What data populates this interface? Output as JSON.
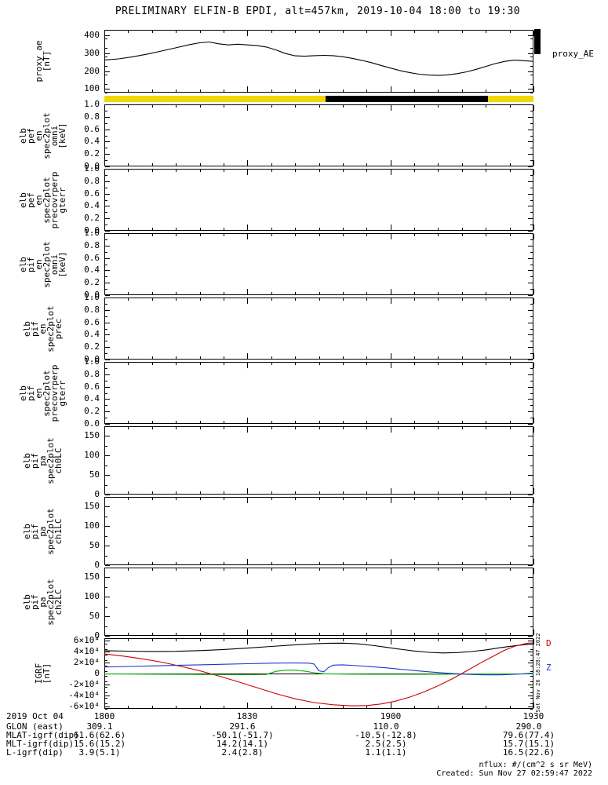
{
  "title": "PRELIMINARY ELFIN-B EPDI, alt=457km, 2019-10-04 18:00 to 19:30",
  "side_timestamp": "Sat Nov 26 18:28:47 2022",
  "xaxis": {
    "range_minutes": [
      0,
      90
    ],
    "major": [
      0,
      30,
      60,
      90
    ],
    "minor_step": 5,
    "tick_labels": [
      "1800",
      "1830",
      "1900",
      "1930"
    ]
  },
  "status_bar": {
    "track_color": "#f0d800",
    "segment_color": "#000000",
    "segment_from": 0.516,
    "segment_to": 0.894
  },
  "chart_data": [
    {
      "type": "line",
      "id": "proxy-ae",
      "ylabel": "proxy_ae\n[nT]",
      "right_label": "proxy_AE",
      "ylim": [
        80,
        430
      ],
      "yminor": 50,
      "yticks": [
        {
          "v": 400,
          "l": "400"
        },
        {
          "v": 300,
          "l": "300"
        },
        {
          "v": 200,
          "l": "200"
        },
        {
          "v": 100,
          "l": "100"
        }
      ],
      "series": [
        {
          "name": "proxy_AE",
          "color": "#000000",
          "points": [
            [
              0,
              262
            ],
            [
              3,
              268
            ],
            [
              6,
              280
            ],
            [
              9,
              295
            ],
            [
              12,
              312
            ],
            [
              15,
              330
            ],
            [
              18,
              348
            ],
            [
              20,
              358
            ],
            [
              22,
              362
            ],
            [
              24,
              352
            ],
            [
              26,
              346
            ],
            [
              28,
              350
            ],
            [
              30,
              346
            ],
            [
              32,
              342
            ],
            [
              34,
              334
            ],
            [
              36,
              318
            ],
            [
              38,
              298
            ],
            [
              40,
              285
            ],
            [
              42,
              283
            ],
            [
              44,
              286
            ],
            [
              46,
              288
            ],
            [
              48,
              286
            ],
            [
              50,
              280
            ],
            [
              52,
              271
            ],
            [
              54,
              260
            ],
            [
              56,
              247
            ],
            [
              58,
              232
            ],
            [
              60,
              217
            ],
            [
              62,
              203
            ],
            [
              64,
              192
            ],
            [
              66,
              183
            ],
            [
              68,
              178
            ],
            [
              70,
              176
            ],
            [
              72,
              179
            ],
            [
              74,
              186
            ],
            [
              76,
              196
            ],
            [
              78,
              210
            ],
            [
              80,
              226
            ],
            [
              82,
              242
            ],
            [
              84,
              254
            ],
            [
              86,
              261
            ],
            [
              88,
              258
            ],
            [
              90,
              254
            ]
          ]
        }
      ]
    },
    {
      "type": "spectrogram",
      "empty": true,
      "id": "elb-pef-en-spec2plot-omni",
      "ylabel": "elb\npef\nen\nspec2plot\nomni\n[keV]",
      "ylim": [
        0,
        1
      ],
      "yminor": 0.1,
      "yticks": [
        {
          "v": 1.0,
          "l": "1.0"
        },
        {
          "v": 0.8,
          "l": "0.8"
        },
        {
          "v": 0.6,
          "l": "0.6"
        },
        {
          "v": 0.4,
          "l": "0.4"
        },
        {
          "v": 0.2,
          "l": "0.2"
        },
        {
          "v": 0.0,
          "l": "0.0"
        }
      ]
    },
    {
      "type": "spectrogram",
      "empty": true,
      "id": "elb-pef-en-spec2plot-precovrperp-gterr",
      "ylabel": "elb\npef\nen\nspec2plot\nprecovrperp\ngterr",
      "ylim": [
        0,
        1
      ],
      "yminor": 0.1,
      "yticks": [
        {
          "v": 1.0,
          "l": "1.0"
        },
        {
          "v": 0.8,
          "l": "0.8"
        },
        {
          "v": 0.6,
          "l": "0.6"
        },
        {
          "v": 0.4,
          "l": "0.4"
        },
        {
          "v": 0.2,
          "l": "0.2"
        },
        {
          "v": 0.0,
          "l": "0.0"
        }
      ]
    },
    {
      "type": "spectrogram",
      "empty": true,
      "id": "elb-pif-en-spec2plot-omni",
      "ylabel": "elb\npif\nen\nspec2plot\nomni\n[keV]",
      "ylim": [
        0,
        1
      ],
      "yminor": 0.1,
      "yticks": [
        {
          "v": 1.0,
          "l": "1.0"
        },
        {
          "v": 0.8,
          "l": "0.8"
        },
        {
          "v": 0.6,
          "l": "0.6"
        },
        {
          "v": 0.4,
          "l": "0.4"
        },
        {
          "v": 0.2,
          "l": "0.2"
        },
        {
          "v": 0.0,
          "l": "0.0"
        }
      ]
    },
    {
      "type": "spectrogram",
      "empty": true,
      "id": "elb-pif-en-spec2plot-prec",
      "ylabel": "elb\npif\nen\nspec2plot\nprec",
      "ylim": [
        0,
        1
      ],
      "yminor": 0.1,
      "yticks": [
        {
          "v": 1.0,
          "l": "1.0"
        },
        {
          "v": 0.8,
          "l": "0.8"
        },
        {
          "v": 0.6,
          "l": "0.6"
        },
        {
          "v": 0.4,
          "l": "0.4"
        },
        {
          "v": 0.2,
          "l": "0.2"
        },
        {
          "v": 0.0,
          "l": "0.0"
        }
      ]
    },
    {
      "type": "spectrogram",
      "empty": true,
      "id": "elb-pif-en-spec2plot-precovrperp-gterr",
      "ylabel": "elb\npif\nen\nspec2plot\nprecovrperp\ngterr",
      "ylim": [
        0,
        1
      ],
      "yminor": 0.1,
      "yticks": [
        {
          "v": 1.0,
          "l": "1.0"
        },
        {
          "v": 0.8,
          "l": "0.8"
        },
        {
          "v": 0.6,
          "l": "0.6"
        },
        {
          "v": 0.4,
          "l": "0.4"
        },
        {
          "v": 0.2,
          "l": "0.2"
        },
        {
          "v": 0.0,
          "l": "0.0"
        }
      ]
    },
    {
      "type": "spectrogram",
      "empty": true,
      "id": "elb-pif-pa-spec2plot-ch0LC",
      "ylabel": "elb\npif\npa\nspec2plot\nch0LC",
      "ylim": [
        0,
        175
      ],
      "yminor": 25,
      "yticks": [
        {
          "v": 150,
          "l": "150"
        },
        {
          "v": 100,
          "l": "100"
        },
        {
          "v": 50,
          "l": "50"
        },
        {
          "v": 0,
          "l": "0"
        }
      ]
    },
    {
      "type": "spectrogram",
      "empty": true,
      "id": "elb-pif-pa-spec2plot-ch1LC",
      "ylabel": "elb\npif\npa\nspec2plot\nch1LC",
      "ylim": [
        0,
        175
      ],
      "yminor": 25,
      "yticks": [
        {
          "v": 150,
          "l": "150"
        },
        {
          "v": 100,
          "l": "100"
        },
        {
          "v": 50,
          "l": "50"
        },
        {
          "v": 0,
          "l": "0"
        }
      ]
    },
    {
      "type": "spectrogram",
      "empty": true,
      "id": "elb-pif-pa-spec2plot-ch2LC",
      "ylabel": "elb\npif\npa\nspec2plot\nch2LC",
      "ylim": [
        0,
        175
      ],
      "yminor": 25,
      "yticks": [
        {
          "v": 150,
          "l": "150"
        },
        {
          "v": 100,
          "l": "100"
        },
        {
          "v": 50,
          "l": "50"
        },
        {
          "v": 0,
          "l": "0"
        }
      ]
    },
    {
      "type": "line",
      "id": "igrf",
      "ylabel": "IGRF\n[nT]",
      "ylim": [
        -65000,
        65000
      ],
      "yminor": 10000,
      "zero_line": true,
      "yticks": [
        {
          "v": 60000,
          "l": "6×10⁴"
        },
        {
          "v": 40000,
          "l": "4×10⁴"
        },
        {
          "v": 20000,
          "l": "2×10⁴"
        },
        {
          "v": 0,
          "l": "0"
        },
        {
          "v": -20000,
          "l": "-2×10⁴"
        },
        {
          "v": -40000,
          "l": "-4×10⁴"
        },
        {
          "v": -60000,
          "l": "-6×10⁴"
        }
      ],
      "legend": [
        {
          "label": "D",
          "color": "#cc0000",
          "v": 56000
        },
        {
          "label": "Z",
          "color": "#2233cc",
          "v": 12000
        }
      ],
      "series": [
        {
          "name": "black-trace",
          "color": "#000000",
          "points": [
            [
              0,
              42000
            ],
            [
              5,
              41200
            ],
            [
              10,
              40600
            ],
            [
              15,
              40900
            ],
            [
              20,
              42200
            ],
            [
              25,
              44200
            ],
            [
              30,
              46800
            ],
            [
              35,
              49800
            ],
            [
              40,
              52800
            ],
            [
              44,
              54800
            ],
            [
              47,
              55800
            ],
            [
              50,
              55900
            ],
            [
              53,
              54800
            ],
            [
              56,
              52000
            ],
            [
              59,
              48500
            ],
            [
              62,
              44800
            ],
            [
              65,
              41500
            ],
            [
              68,
              39000
            ],
            [
              71,
              37800
            ],
            [
              74,
              38500
            ],
            [
              77,
              40500
            ],
            [
              80,
              43500
            ],
            [
              83,
              47500
            ],
            [
              86,
              51000
            ],
            [
              88,
              53000
            ],
            [
              90,
              54500
            ]
          ]
        },
        {
          "name": "red-trace",
          "color": "#cc0000",
          "points": [
            [
              0,
              36000
            ],
            [
              4,
              32000
            ],
            [
              8,
              27000
            ],
            [
              12,
              21000
            ],
            [
              16,
              13500
            ],
            [
              20,
              5000
            ],
            [
              24,
              -4500
            ],
            [
              28,
              -15000
            ],
            [
              32,
              -26000
            ],
            [
              36,
              -37000
            ],
            [
              40,
              -46500
            ],
            [
              44,
              -53500
            ],
            [
              48,
              -57500
            ],
            [
              52,
              -59500
            ],
            [
              55,
              -59000
            ],
            [
              58,
              -56000
            ],
            [
              61,
              -51000
            ],
            [
              64,
              -43500
            ],
            [
              67,
              -34000
            ],
            [
              70,
              -22500
            ],
            [
              73,
              -9500
            ],
            [
              76,
              5000
            ],
            [
              79,
              20000
            ],
            [
              82,
              34000
            ],
            [
              84,
              43000
            ],
            [
              86,
              50000
            ],
            [
              88,
              54500
            ],
            [
              89,
              56000
            ],
            [
              90,
              56200
            ]
          ]
        },
        {
          "name": "green-trace",
          "color": "#00b300",
          "points": [
            [
              0,
              -800
            ],
            [
              6,
              -1000
            ],
            [
              12,
              -1300
            ],
            [
              18,
              -1600
            ],
            [
              24,
              -1900
            ],
            [
              30,
              -2100
            ],
            [
              34,
              -1800
            ],
            [
              36,
              4000
            ],
            [
              38,
              6000
            ],
            [
              40,
              6000
            ],
            [
              42,
              4500
            ],
            [
              44,
              1500
            ],
            [
              46,
              -400
            ],
            [
              48,
              -900
            ],
            [
              52,
              -1100
            ],
            [
              56,
              -1400
            ],
            [
              60,
              -1500
            ],
            [
              64,
              -1400
            ],
            [
              68,
              -1300
            ],
            [
              72,
              -1100
            ],
            [
              76,
              -900
            ],
            [
              80,
              -900
            ],
            [
              84,
              -800
            ],
            [
              90,
              -700
            ]
          ]
        },
        {
          "name": "blue-trace",
          "color": "#2233cc",
          "points": [
            [
              0,
              12000
            ],
            [
              5,
              13000
            ],
            [
              10,
              14000
            ],
            [
              15,
              15000
            ],
            [
              20,
              16000
            ],
            [
              25,
              17000
            ],
            [
              30,
              18000
            ],
            [
              35,
              19000
            ],
            [
              40,
              19500
            ],
            [
              43,
              19000
            ],
            [
              44,
              17500
            ],
            [
              45,
              5000
            ],
            [
              46,
              3000
            ],
            [
              47,
              11000
            ],
            [
              48,
              15500
            ],
            [
              50,
              16000
            ],
            [
              53,
              14500
            ],
            [
              56,
              12500
            ],
            [
              59,
              10500
            ],
            [
              62,
              8000
            ],
            [
              65,
              5500
            ],
            [
              68,
              3200
            ],
            [
              71,
              1200
            ],
            [
              74,
              -500
            ],
            [
              77,
              -1800
            ],
            [
              80,
              -2500
            ],
            [
              83,
              -2500
            ],
            [
              86,
              -1500
            ],
            [
              88,
              -500
            ],
            [
              90,
              800
            ]
          ]
        }
      ]
    }
  ],
  "footer": {
    "date": "2019 Oct 04",
    "time_ticks": [
      "1800",
      "1830",
      "1900",
      "1930"
    ],
    "rows": [
      {
        "label": "GLON (east)",
        "values": [
          "309.1",
          "291.6",
          "110.0",
          "290.0"
        ]
      },
      {
        "label": "MLAT-igrf(dip)",
        "values": [
          "61.6(62.6)",
          "-50.1(-51.7)",
          "-10.5(-12.8)",
          "79.6(77.4)"
        ]
      },
      {
        "label": "MLT-igrf(dip)",
        "values": [
          "15.6(15.2)",
          "14.2(14.1)",
          "2.5(2.5)",
          "15.7(15.1)"
        ]
      },
      {
        "label": "L-igrf(dip)",
        "values": [
          "3.9(5.1)",
          "2.4(2.8)",
          "1.1(1.1)",
          "16.5(22.6)"
        ]
      }
    ],
    "nflux": "nflux: #/(cm^2 s sr MeV)",
    "created": "Created: Sun Nov 27 02:59:47 2022"
  }
}
